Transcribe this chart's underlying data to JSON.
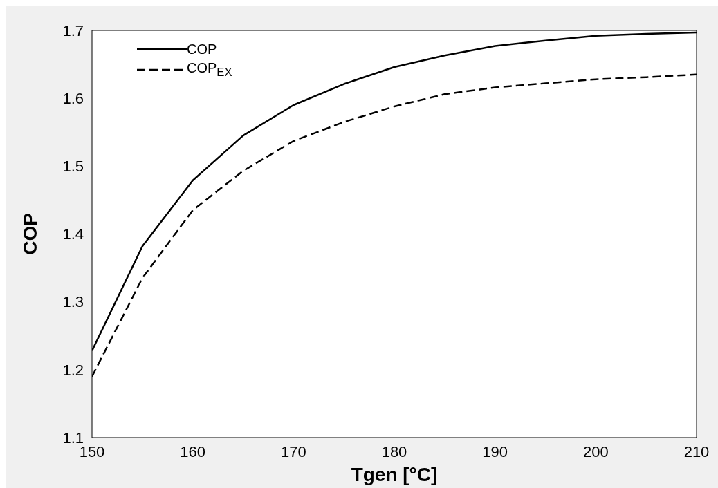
{
  "chart_data": {
    "type": "line",
    "xlabel": "Tgen  [°C]",
    "ylabel": "COP",
    "x": [
      150,
      155,
      160,
      165,
      170,
      175,
      180,
      185,
      190,
      195,
      200,
      205,
      210
    ],
    "series": [
      {
        "name": "COP",
        "color": "#000000",
        "line_style": "solid",
        "values": [
          1.228,
          1.382,
          1.479,
          1.545,
          1.59,
          1.621,
          1.646,
          1.663,
          1.677,
          1.685,
          1.692,
          1.695,
          1.697
        ]
      },
      {
        "name": "COP$_{EX}$",
        "color": "#000000",
        "line_style": "dashed",
        "values": [
          1.19,
          1.335,
          1.435,
          1.493,
          1.537,
          1.565,
          1.588,
          1.606,
          1.616,
          1.622,
          1.628,
          1.631,
          1.635
        ]
      }
    ],
    "xlim": [
      150,
      210
    ],
    "xticks": [
      150,
      160,
      170,
      180,
      190,
      200,
      210
    ],
    "ylim": [
      1.1,
      1.7
    ],
    "yticks": [
      1.1,
      1.2,
      1.3,
      1.4,
      1.5,
      1.6,
      1.7
    ],
    "grid": false,
    "legend": "top left",
    "marker": "none"
  }
}
